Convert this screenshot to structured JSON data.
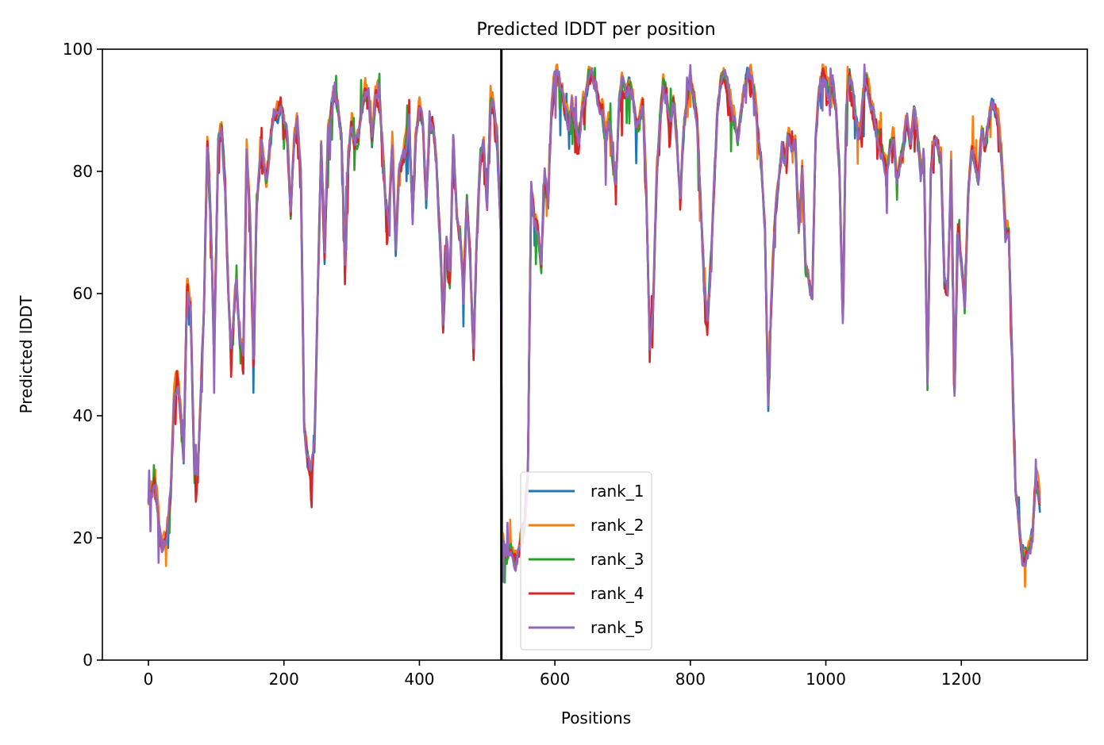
{
  "chart_data": {
    "type": "line",
    "title": "Predicted lDDT per position",
    "xlabel": "Positions",
    "ylabel": "Predicted lDDT",
    "xlim": [
      -68,
      1386
    ],
    "ylim": [
      0,
      100
    ],
    "xticks": [
      0,
      200,
      400,
      600,
      800,
      1000,
      1200
    ],
    "yticks": [
      0,
      20,
      40,
      60,
      80,
      100
    ],
    "grid": false,
    "legend_position": "lower-center",
    "vertical_marker_x": 521,
    "x_range": [
      0,
      1316
    ],
    "profile": [
      [
        0,
        26
      ],
      [
        6,
        28
      ],
      [
        10,
        30
      ],
      [
        15,
        22
      ],
      [
        20,
        18
      ],
      [
        27,
        20
      ],
      [
        33,
        28
      ],
      [
        38,
        43
      ],
      [
        43,
        46
      ],
      [
        48,
        40
      ],
      [
        52,
        33
      ],
      [
        57,
        61
      ],
      [
        62,
        58
      ],
      [
        68,
        30
      ],
      [
        73,
        31
      ],
      [
        82,
        58
      ],
      [
        87,
        85
      ],
      [
        92,
        72
      ],
      [
        97,
        50
      ],
      [
        103,
        84
      ],
      [
        108,
        87
      ],
      [
        113,
        78
      ],
      [
        118,
        60
      ],
      [
        122,
        50
      ],
      [
        125,
        55
      ],
      [
        130,
        62
      ],
      [
        135,
        52
      ],
      [
        140,
        50
      ],
      [
        145,
        84
      ],
      [
        150,
        72
      ],
      [
        155,
        50
      ],
      [
        160,
        75
      ],
      [
        167,
        84
      ],
      [
        174,
        78
      ],
      [
        180,
        85
      ],
      [
        185,
        90
      ],
      [
        190,
        89
      ],
      [
        195,
        91
      ],
      [
        200,
        88
      ],
      [
        205,
        85
      ],
      [
        210,
        73
      ],
      [
        215,
        85
      ],
      [
        220,
        88
      ],
      [
        225,
        79
      ],
      [
        230,
        38
      ],
      [
        235,
        33
      ],
      [
        240,
        30
      ],
      [
        245,
        35
      ],
      [
        250,
        60
      ],
      [
        255,
        84
      ],
      [
        260,
        66
      ],
      [
        265,
        85
      ],
      [
        270,
        90
      ],
      [
        275,
        93
      ],
      [
        280,
        90
      ],
      [
        285,
        85
      ],
      [
        290,
        65
      ],
      [
        295,
        82
      ],
      [
        300,
        88
      ],
      [
        305,
        84
      ],
      [
        310,
        86
      ],
      [
        315,
        90
      ],
      [
        320,
        93
      ],
      [
        325,
        92
      ],
      [
        330,
        85
      ],
      [
        335,
        92
      ],
      [
        340,
        94
      ],
      [
        345,
        85
      ],
      [
        350,
        75
      ],
      [
        355,
        72
      ],
      [
        360,
        85
      ],
      [
        365,
        68
      ],
      [
        370,
        80
      ],
      [
        375,
        82
      ],
      [
        380,
        84
      ],
      [
        385,
        88
      ],
      [
        390,
        72
      ],
      [
        395,
        86
      ],
      [
        400,
        90
      ],
      [
        405,
        88
      ],
      [
        410,
        75
      ],
      [
        415,
        88
      ],
      [
        420,
        87
      ],
      [
        425,
        82
      ],
      [
        430,
        70
      ],
      [
        435,
        55
      ],
      [
        440,
        68
      ],
      [
        445,
        62
      ],
      [
        450,
        85
      ],
      [
        455,
        73
      ],
      [
        460,
        70
      ],
      [
        465,
        60
      ],
      [
        470,
        75
      ],
      [
        475,
        65
      ],
      [
        480,
        50
      ],
      [
        485,
        70
      ],
      [
        490,
        82
      ],
      [
        495,
        84
      ],
      [
        500,
        75
      ],
      [
        505,
        92
      ],
      [
        510,
        90
      ],
      [
        515,
        85
      ],
      [
        520,
        70
      ],
      [
        522,
        20
      ],
      [
        528,
        17
      ],
      [
        535,
        18
      ],
      [
        540,
        16
      ],
      [
        545,
        17
      ],
      [
        550,
        20
      ],
      [
        555,
        22
      ],
      [
        560,
        30
      ],
      [
        565,
        78
      ],
      [
        570,
        72
      ],
      [
        575,
        70
      ],
      [
        580,
        65
      ],
      [
        585,
        80
      ],
      [
        590,
        75
      ],
      [
        595,
        90
      ],
      [
        600,
        95
      ],
      [
        605,
        96
      ],
      [
        610,
        93
      ],
      [
        615,
        90
      ],
      [
        620,
        88
      ],
      [
        625,
        91
      ],
      [
        630,
        88
      ],
      [
        635,
        85
      ],
      [
        640,
        90
      ],
      [
        645,
        92
      ],
      [
        650,
        95
      ],
      [
        655,
        96
      ],
      [
        660,
        94
      ],
      [
        665,
        91
      ],
      [
        670,
        90
      ],
      [
        675,
        85
      ],
      [
        680,
        88
      ],
      [
        685,
        82
      ],
      [
        690,
        78
      ],
      [
        695,
        92
      ],
      [
        700,
        95
      ],
      [
        705,
        93
      ],
      [
        710,
        94
      ],
      [
        715,
        92
      ],
      [
        720,
        87
      ],
      [
        725,
        88
      ],
      [
        730,
        91
      ],
      [
        735,
        76
      ],
      [
        740,
        52
      ],
      [
        745,
        58
      ],
      [
        750,
        78
      ],
      [
        755,
        88
      ],
      [
        760,
        94
      ],
      [
        765,
        92
      ],
      [
        770,
        88
      ],
      [
        775,
        92
      ],
      [
        780,
        85
      ],
      [
        785,
        76
      ],
      [
        790,
        86
      ],
      [
        795,
        92
      ],
      [
        800,
        95
      ],
      [
        805,
        92
      ],
      [
        810,
        88
      ],
      [
        815,
        76
      ],
      [
        820,
        62
      ],
      [
        825,
        55
      ],
      [
        830,
        64
      ],
      [
        835,
        78
      ],
      [
        840,
        90
      ],
      [
        845,
        95
      ],
      [
        850,
        96
      ],
      [
        855,
        94
      ],
      [
        860,
        91
      ],
      [
        865,
        88
      ],
      [
        870,
        85
      ],
      [
        875,
        90
      ],
      [
        880,
        94
      ],
      [
        885,
        96
      ],
      [
        890,
        95
      ],
      [
        895,
        92
      ],
      [
        900,
        86
      ],
      [
        905,
        80
      ],
      [
        910,
        70
      ],
      [
        915,
        42
      ],
      [
        920,
        60
      ],
      [
        925,
        72
      ],
      [
        930,
        78
      ],
      [
        935,
        84
      ],
      [
        940,
        82
      ],
      [
        945,
        86
      ],
      [
        950,
        84
      ],
      [
        955,
        85
      ],
      [
        960,
        70
      ],
      [
        965,
        80
      ],
      [
        970,
        64
      ],
      [
        975,
        62
      ],
      [
        980,
        60
      ],
      [
        985,
        86
      ],
      [
        990,
        93
      ],
      [
        995,
        96
      ],
      [
        1000,
        95
      ],
      [
        1005,
        92
      ],
      [
        1010,
        94
      ],
      [
        1015,
        90
      ],
      [
        1020,
        80
      ],
      [
        1025,
        56
      ],
      [
        1030,
        90
      ],
      [
        1035,
        96
      ],
      [
        1040,
        93
      ],
      [
        1045,
        88
      ],
      [
        1050,
        86
      ],
      [
        1055,
        92
      ],
      [
        1060,
        95
      ],
      [
        1065,
        92
      ],
      [
        1070,
        89
      ],
      [
        1075,
        86
      ],
      [
        1080,
        84
      ],
      [
        1085,
        82
      ],
      [
        1090,
        80
      ],
      [
        1095,
        84
      ],
      [
        1100,
        86
      ],
      [
        1105,
        78
      ],
      [
        1110,
        82
      ],
      [
        1115,
        85
      ],
      [
        1120,
        88
      ],
      [
        1125,
        84
      ],
      [
        1130,
        90
      ],
      [
        1135,
        86
      ],
      [
        1140,
        80
      ],
      [
        1145,
        82
      ],
      [
        1150,
        45
      ],
      [
        1155,
        80
      ],
      [
        1160,
        85
      ],
      [
        1165,
        84
      ],
      [
        1170,
        82
      ],
      [
        1175,
        62
      ],
      [
        1180,
        60
      ],
      [
        1185,
        82
      ],
      [
        1190,
        44
      ],
      [
        1195,
        70
      ],
      [
        1200,
        65
      ],
      [
        1205,
        58
      ],
      [
        1210,
        75
      ],
      [
        1215,
        84
      ],
      [
        1220,
        82
      ],
      [
        1225,
        78
      ],
      [
        1230,
        86
      ],
      [
        1235,
        84
      ],
      [
        1240,
        88
      ],
      [
        1245,
        91
      ],
      [
        1250,
        90
      ],
      [
        1255,
        88
      ],
      [
        1260,
        82
      ],
      [
        1265,
        70
      ],
      [
        1270,
        70
      ],
      [
        1275,
        50
      ],
      [
        1280,
        28
      ],
      [
        1285,
        22
      ],
      [
        1290,
        16
      ],
      [
        1295,
        17
      ],
      [
        1300,
        18
      ],
      [
        1305,
        20
      ],
      [
        1310,
        30
      ],
      [
        1313,
        28
      ],
      [
        1316,
        25
      ]
    ],
    "series": [
      {
        "name": "rank_1",
        "color": "#1f77b4"
      },
      {
        "name": "rank_2",
        "color": "#ff7f0e"
      },
      {
        "name": "rank_3",
        "color": "#2ca02c"
      },
      {
        "name": "rank_4",
        "color": "#d62728"
      },
      {
        "name": "rank_5",
        "color": "#9467bd"
      }
    ]
  }
}
